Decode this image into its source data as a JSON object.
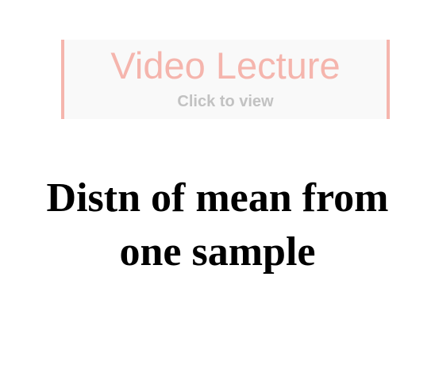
{
  "video_banner": {
    "title": "Video Lecture",
    "subtitle": "Click to view",
    "colors": {
      "accent": "#f5b5ad",
      "subtitle": "#c2c2c2",
      "background": "#f9f9f9"
    }
  },
  "slide": {
    "title_lines": [
      "Distn of mean from",
      "one sample"
    ]
  }
}
